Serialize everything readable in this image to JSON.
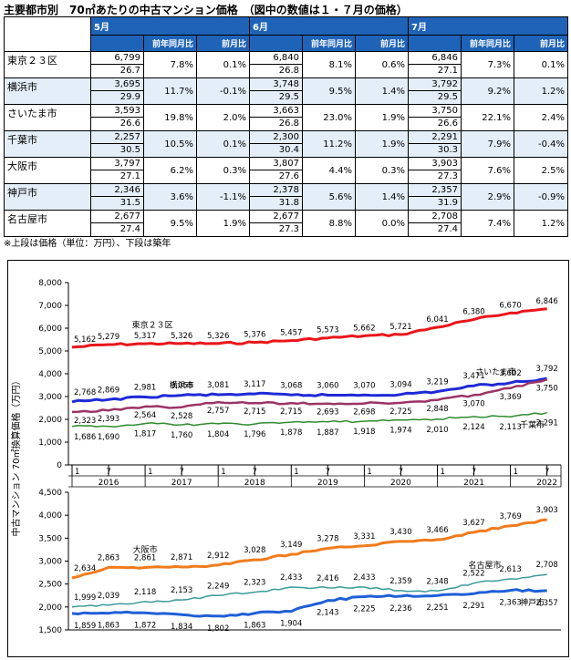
{
  "header": {
    "title": "主要都市別　70㎡あたりの中古マンション価格　（図中の数値は１・７月の価格）",
    "months": [
      "5月",
      "6月",
      "7月"
    ],
    "yoy_label": "前年同月比",
    "mom_label": "前月比"
  },
  "table": {
    "rows": [
      {
        "city": "東京２３区",
        "m5": {
          "price": "6,799",
          "age": "26.7",
          "yoy": "7.8%",
          "mom": "0.1%"
        },
        "m6": {
          "price": "6,840",
          "age": "26.8",
          "yoy": "8.1%",
          "mom": "0.6%"
        },
        "m7": {
          "price": "6,846",
          "age": "27.1",
          "yoy": "7.3%",
          "mom": "0.1%"
        }
      },
      {
        "city": "横浜市",
        "m5": {
          "price": "3,695",
          "age": "29.9",
          "yoy": "11.7%",
          "mom": "-0.1%"
        },
        "m6": {
          "price": "3,748",
          "age": "29.5",
          "yoy": "9.5%",
          "mom": "1.4%"
        },
        "m7": {
          "price": "3,792",
          "age": "29.5",
          "yoy": "9.2%",
          "mom": "1.2%"
        }
      },
      {
        "city": "さいたま市",
        "m5": {
          "price": "3,593",
          "age": "26.6",
          "yoy": "19.8%",
          "mom": "2.0%"
        },
        "m6": {
          "price": "3,663",
          "age": "26.8",
          "yoy": "23.0%",
          "mom": "1.9%"
        },
        "m7": {
          "price": "3,750",
          "age": "26.6",
          "yoy": "22.1%",
          "mom": "2.4%"
        }
      },
      {
        "city": "千葉市",
        "m5": {
          "price": "2,257",
          "age": "30.5",
          "yoy": "10.5%",
          "mom": "0.1%"
        },
        "m6": {
          "price": "2,300",
          "age": "30.4",
          "yoy": "11.2%",
          "mom": "1.9%"
        },
        "m7": {
          "price": "2,291",
          "age": "30.3",
          "yoy": "7.9%",
          "mom": "-0.4%"
        }
      },
      {
        "city": "大阪市",
        "m5": {
          "price": "3,797",
          "age": "27.1",
          "yoy": "6.2%",
          "mom": "0.3%"
        },
        "m6": {
          "price": "3,807",
          "age": "27.6",
          "yoy": "4.4%",
          "mom": "0.3%"
        },
        "m7": {
          "price": "3,903",
          "age": "27.3",
          "yoy": "7.6%",
          "mom": "2.5%"
        }
      },
      {
        "city": "神戸市",
        "m5": {
          "price": "2,346",
          "age": "31.5",
          "yoy": "3.6%",
          "mom": "-1.1%"
        },
        "m6": {
          "price": "2,378",
          "age": "31.8",
          "yoy": "5.6%",
          "mom": "1.4%"
        },
        "m7": {
          "price": "2,357",
          "age": "31.9",
          "yoy": "2.9%",
          "mom": "-0.9%"
        }
      },
      {
        "city": "名古屋市",
        "m5": {
          "price": "2,677",
          "age": "27.4",
          "yoy": "9.5%",
          "mom": "1.9%"
        },
        "m6": {
          "price": "2,677",
          "age": "27.3",
          "yoy": "8.8%",
          "mom": "0.0%"
        },
        "m7": {
          "price": "2,708",
          "age": "27.4",
          "yoy": "7.4%",
          "mom": "1.2%"
        }
      }
    ],
    "shaded_rows": [
      1,
      3,
      5
    ]
  },
  "note": "※上段は価格（単位：万円）、下段は築年",
  "chart_data": {
    "type": "line",
    "ylabel": "中古マンション 70㎡換算価格（万円）",
    "x_ticks": [
      "1",
      "7",
      "1",
      "7",
      "1",
      "7",
      "1",
      "7",
      "1",
      "7",
      "1",
      "7",
      "1",
      "7"
    ],
    "x_years": [
      "2016",
      "2017",
      "2018",
      "2019",
      "2020",
      "2021",
      "2022"
    ],
    "panels": [
      {
        "ylim": [
          0,
          8000
        ],
        "yticks": [
          "0",
          "1,000",
          "2,000",
          "3,000",
          "4,000",
          "5,000",
          "6,000",
          "7,000",
          "8,000"
        ],
        "series": [
          {
            "name": "東京２３区",
            "color": "#e8161b",
            "width": 3,
            "values": [
              5162,
              5279,
              5317,
              5326,
              5326,
              5376,
              5457,
              5573,
              5662,
              5721,
              6041,
              6380,
              6670,
              6846
            ],
            "labels": [
              "5,162",
              "5,279",
              "5,317",
              "5,326",
              "5,326",
              "5,376",
              "5,457",
              "5,573",
              "5,662",
              "5,721",
              "6,041",
              "6,380",
              "6,670",
              "6,846"
            ]
          },
          {
            "name": "横浜市",
            "color": "#1f2ad6",
            "width": 3,
            "values": [
              2768,
              2869,
              2981,
              3058,
              3081,
              3117,
              3068,
              3060,
              3070,
              3094,
              3219,
              3471,
              3602,
              3792
            ],
            "labels": [
              "2,768",
              "2,869",
              "2,981",
              "3,058",
              "3,081",
              "3,117",
              "3,068",
              "3,060",
              "3,070",
              "3,094",
              "3,219",
              "3,471",
              "3,602",
              "3,792"
            ]
          },
          {
            "name": "さいたま市",
            "color": "#9b3466",
            "width": 2.5,
            "values": [
              2323,
              2393,
              2564,
              2528,
              2757,
              2715,
              2715,
              2693,
              2698,
              2725,
              2848,
              3070,
              3369,
              3750
            ],
            "labels": [
              "2,323",
              "2,393",
              "2,564",
              "2,528",
              "2,757",
              "2,715",
              "2,715",
              "2,693",
              "2,698",
              "2,725",
              "2,848",
              "3,070",
              "3,369",
              "3,750"
            ]
          },
          {
            "name": "千葉市",
            "color": "#2e8b2e",
            "width": 1.5,
            "values": [
              1686,
              1690,
              1817,
              1760,
              1804,
              1796,
              1878,
              1887,
              1918,
              1974,
              2010,
              2124,
              2113,
              2291
            ],
            "labels": [
              "1,686",
              "1,690",
              "1,817",
              "1,760",
              "1,804",
              "1,796",
              "1,878",
              "1,887",
              "1,918",
              "1,974",
              "2,010",
              "2,124",
              "2,113",
              "2,291"
            ]
          }
        ]
      },
      {
        "ylim": [
          1500,
          4500
        ],
        "yticks": [
          "1,500",
          "2,000",
          "2,500",
          "3,000",
          "3,500",
          "4,000",
          "4,500"
        ],
        "series": [
          {
            "name": "大阪市",
            "color": "#f07b1d",
            "width": 3,
            "values": [
              2634,
              2863,
              2861,
              2871,
              2912,
              3028,
              3149,
              3278,
              3331,
              3430,
              3466,
              3627,
              3769,
              3903
            ],
            "labels": [
              "2,634",
              "2,863",
              "2,861",
              "2,871",
              "2,912",
              "3,028",
              "3,149",
              "3,278",
              "3,331",
              "3,430",
              "3,466",
              "3,627",
              "3,769",
              "3,903"
            ]
          },
          {
            "name": "名古屋市",
            "color": "#3a9a9a",
            "width": 1.5,
            "values": [
              1999,
              2039,
              2118,
              2153,
              2249,
              2323,
              2433,
              2416,
              2433,
              2359,
              2348,
              2522,
              2613,
              2708
            ],
            "labels": [
              "1,999",
              "2,039",
              "2,118",
              "2,153",
              "2,249",
              "2,323",
              "2,433",
              "2,416",
              "2,433",
              "2,359",
              "2,348",
              "2,522",
              "2,613",
              "2,708"
            ]
          },
          {
            "name": "神戸市",
            "color": "#1f5fd6",
            "width": 3,
            "values": [
              1859,
              1863,
              1872,
              1834,
              1802,
              1863,
              1904,
              2143,
              2225,
              2236,
              2251,
              2291,
              2363,
              2357
            ],
            "labels": [
              "1,859",
              "1,863",
              "1,872",
              "1,834",
              "1,802",
              "1,863",
              "1,904",
              "2,143",
              "2,225",
              "2,236",
              "2,251",
              "2,291",
              "2,363",
              "2,357"
            ]
          }
        ]
      }
    ]
  }
}
